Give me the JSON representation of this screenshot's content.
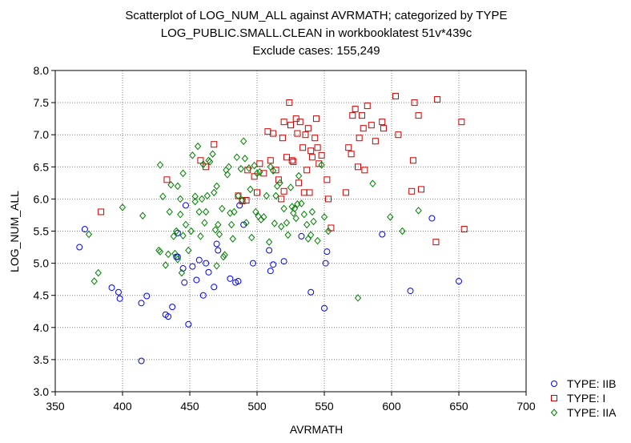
{
  "chart_data": {
    "type": "scatter",
    "title": [
      "Scatterplot of LOG_NUM_ALL against AVRMATH; categorized by TYPE",
      "LOG_PUBLIC.SMALL.CLEAN in workbooklatest 51v*439c",
      "Exclude cases: 155,249"
    ],
    "xlabel": "AVRMATH",
    "ylabel": "LOG_NUM_ALL",
    "xlim": [
      350,
      700
    ],
    "ylim": [
      3.0,
      8.0
    ],
    "xticks": [
      "350",
      "400",
      "450",
      "500",
      "550",
      "600",
      "650",
      "700"
    ],
    "yticks": [
      "3.0",
      "3.5",
      "4.0",
      "4.5",
      "5.0",
      "5.5",
      "6.0",
      "6.5",
      "7.0",
      "7.5",
      "8.0"
    ],
    "grid": true,
    "legend_position": "bottom-right",
    "series": [
      {
        "name": "TYPE: IIB",
        "marker": "circle",
        "color": "#0000ff",
        "points": [
          [
            368,
            5.25
          ],
          [
            372,
            5.53
          ],
          [
            392,
            4.62
          ],
          [
            397,
            4.55
          ],
          [
            398,
            4.45
          ],
          [
            414,
            4.38
          ],
          [
            418,
            4.49
          ],
          [
            414,
            3.48
          ],
          [
            432,
            4.2
          ],
          [
            434,
            4.17
          ],
          [
            437,
            4.32
          ],
          [
            440,
            5.1
          ],
          [
            441,
            5.1
          ],
          [
            441,
            5.47
          ],
          [
            445,
            4.92
          ],
          [
            446,
            4.7
          ],
          [
            447,
            5.9
          ],
          [
            449,
            4.05
          ],
          [
            452,
            4.95
          ],
          [
            455,
            4.74
          ],
          [
            457,
            5.05
          ],
          [
            460,
            4.5
          ],
          [
            462,
            5.0
          ],
          [
            464,
            4.86
          ],
          [
            468,
            4.63
          ],
          [
            470,
            5.3
          ],
          [
            471,
            5.2
          ],
          [
            480,
            4.76
          ],
          [
            484,
            4.7
          ],
          [
            486,
            4.72
          ],
          [
            487,
            5.9
          ],
          [
            490,
            5.6
          ],
          [
            497,
            5.0
          ],
          [
            509,
            5.2
          ],
          [
            510,
            4.88
          ],
          [
            512,
            4.98
          ],
          [
            520,
            5.03
          ],
          [
            533,
            5.42
          ],
          [
            540,
            4.55
          ],
          [
            550,
            4.3
          ],
          [
            551,
            5.0
          ],
          [
            552,
            5.18
          ],
          [
            593,
            5.45
          ],
          [
            614,
            4.57
          ],
          [
            630,
            5.7
          ],
          [
            650,
            4.72
          ]
        ]
      },
      {
        "name": "TYPE: I",
        "marker": "square",
        "color": "#cc0000",
        "points": [
          [
            384,
            5.8
          ],
          [
            433,
            6.3
          ],
          [
            458,
            6.6
          ],
          [
            462,
            6.5
          ],
          [
            468,
            6.85
          ],
          [
            486,
            6.05
          ],
          [
            489,
            5.97
          ],
          [
            492,
            5.98
          ],
          [
            493,
            6.45
          ],
          [
            498,
            6.35
          ],
          [
            500,
            6.1
          ],
          [
            502,
            6.55
          ],
          [
            505,
            6.4
          ],
          [
            508,
            7.05
          ],
          [
            510,
            6.6
          ],
          [
            512,
            7.02
          ],
          [
            514,
            6.45
          ],
          [
            516,
            6.3
          ],
          [
            518,
            6.0
          ],
          [
            519,
            6.95
          ],
          [
            520,
            7.2
          ],
          [
            520,
            6.12
          ],
          [
            522,
            6.65
          ],
          [
            524,
            7.5
          ],
          [
            525,
            7.15
          ],
          [
            526,
            6.6
          ],
          [
            527,
            6.58
          ],
          [
            529,
            7.25
          ],
          [
            530,
            7.02
          ],
          [
            531,
            6.25
          ],
          [
            532,
            7.2
          ],
          [
            534,
            6.8
          ],
          [
            535,
            6.1
          ],
          [
            536,
            7.0
          ],
          [
            537,
            6.45
          ],
          [
            538,
            7.1
          ],
          [
            539,
            6.1
          ],
          [
            540,
            6.75
          ],
          [
            541,
            6.65
          ],
          [
            543,
            6.95
          ],
          [
            544,
            7.25
          ],
          [
            545,
            6.8
          ],
          [
            546,
            6.55
          ],
          [
            548,
            6.68
          ],
          [
            552,
            6.3
          ],
          [
            553,
            6.0
          ],
          [
            555,
            5.55
          ],
          [
            566,
            6.1
          ],
          [
            568,
            6.8
          ],
          [
            570,
            6.7
          ],
          [
            571,
            7.3
          ],
          [
            573,
            7.4
          ],
          [
            575,
            6.5
          ],
          [
            576,
            6.95
          ],
          [
            578,
            7.3
          ],
          [
            579,
            7.1
          ],
          [
            580,
            6.45
          ],
          [
            582,
            7.45
          ],
          [
            585,
            7.15
          ],
          [
            588,
            6.9
          ],
          [
            593,
            7.2
          ],
          [
            594,
            7.1
          ],
          [
            603,
            7.6
          ],
          [
            605,
            7.0
          ],
          [
            615,
            6.12
          ],
          [
            616,
            6.6
          ],
          [
            617,
            7.5
          ],
          [
            620,
            7.3
          ],
          [
            622,
            6.15
          ],
          [
            633,
            5.33
          ],
          [
            634,
            7.55
          ],
          [
            652,
            7.2
          ],
          [
            654,
            5.53
          ]
        ]
      },
      {
        "name": "TYPE: IIA",
        "marker": "diamond",
        "color": "#008000",
        "points": [
          [
            375,
            5.45
          ],
          [
            379,
            4.72
          ],
          [
            382,
            4.85
          ],
          [
            400,
            5.87
          ],
          [
            415,
            5.74
          ],
          [
            427,
            5.2
          ],
          [
            428,
            5.18
          ],
          [
            428,
            6.53
          ],
          [
            430,
            6.04
          ],
          [
            432,
            4.97
          ],
          [
            434,
            5.14
          ],
          [
            435,
            5.8
          ],
          [
            436,
            6.22
          ],
          [
            438,
            5.42
          ],
          [
            439,
            5.15
          ],
          [
            440,
            5.5
          ],
          [
            441,
            5.06
          ],
          [
            441,
            6.2
          ],
          [
            443,
            5.76
          ],
          [
            443,
            6.0
          ],
          [
            444,
            4.85
          ],
          [
            445,
            5.43
          ],
          [
            445,
            6.4
          ],
          [
            447,
            5.6
          ],
          [
            449,
            5.2
          ],
          [
            451,
            5.5
          ],
          [
            452,
            6.68
          ],
          [
            454,
            6.04
          ],
          [
            454,
            5.96
          ],
          [
            456,
            6.82
          ],
          [
            457,
            5.8
          ],
          [
            458,
            5.42
          ],
          [
            459,
            6.0
          ],
          [
            460,
            6.54
          ],
          [
            461,
            5.63
          ],
          [
            462,
            5.8
          ],
          [
            463,
            6.05
          ],
          [
            464,
            6.6
          ],
          [
            465,
            6.58
          ],
          [
            467,
            6.7
          ],
          [
            468,
            6.1
          ],
          [
            469,
            5.52
          ],
          [
            470,
            6.2
          ],
          [
            470,
            4.96
          ],
          [
            471,
            5.6
          ],
          [
            472,
            5.45
          ],
          [
            474,
            5.85
          ],
          [
            475,
            5.1
          ],
          [
            476,
            5.13
          ],
          [
            477,
            6.45
          ],
          [
            478,
            6.38
          ],
          [
            479,
            6.5
          ],
          [
            480,
            5.78
          ],
          [
            481,
            5.6
          ],
          [
            482,
            5.38
          ],
          [
            483,
            5.8
          ],
          [
            485,
            6.65
          ],
          [
            486,
            6.05
          ],
          [
            488,
            6.47
          ],
          [
            489,
            5.98
          ],
          [
            490,
            6.9
          ],
          [
            491,
            6.63
          ],
          [
            492,
            5.63
          ],
          [
            494,
            6.48
          ],
          [
            495,
            6.15
          ],
          [
            496,
            5.4
          ],
          [
            498,
            6.52
          ],
          [
            499,
            5.8
          ],
          [
            500,
            6.4
          ],
          [
            501,
            5.73
          ],
          [
            502,
            6.42
          ],
          [
            503,
            5.68
          ],
          [
            505,
            5.72
          ],
          [
            507,
            6.05
          ],
          [
            509,
            5.33
          ],
          [
            510,
            6.5
          ],
          [
            512,
            6.44
          ],
          [
            513,
            5.62
          ],
          [
            514,
            6.05
          ],
          [
            515,
            6.2
          ],
          [
            517,
            6.25
          ],
          [
            518,
            5.57
          ],
          [
            520,
            5.85
          ],
          [
            522,
            5.63
          ],
          [
            523,
            5.44
          ],
          [
            525,
            6.18
          ],
          [
            526,
            5.88
          ],
          [
            527,
            5.78
          ],
          [
            528,
            5.85
          ],
          [
            529,
            5.7
          ],
          [
            530,
            5.92
          ],
          [
            531,
            6.36
          ],
          [
            533,
            5.93
          ],
          [
            535,
            5.76
          ],
          [
            537,
            5.6
          ],
          [
            538,
            5.38
          ],
          [
            540,
            5.44
          ],
          [
            541,
            5.8
          ],
          [
            542,
            5.65
          ],
          [
            545,
            5.35
          ],
          [
            548,
            6.53
          ],
          [
            550,
            5.72
          ],
          [
            553,
            5.5
          ],
          [
            575,
            4.46
          ],
          [
            586,
            6.24
          ],
          [
            599,
            5.72
          ],
          [
            608,
            5.5
          ],
          [
            620,
            5.82
          ]
        ]
      }
    ]
  }
}
